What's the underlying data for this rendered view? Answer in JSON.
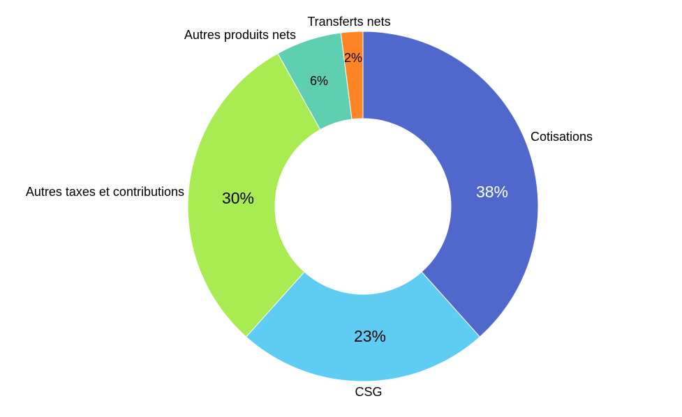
{
  "chart_data": {
    "type": "pie",
    "variant": "donut",
    "title": "",
    "unit": "%",
    "start_angle_deg": 0,
    "direction": "clockwise",
    "slices": [
      {
        "label": "Cotisations",
        "value": 38,
        "display": "38%",
        "color": "#5067CB",
        "text_color": "#FFFFFF"
      },
      {
        "label": "CSG",
        "value": 23,
        "display": "23%",
        "color": "#5ECCF3",
        "text_color": "#000000"
      },
      {
        "label": "Autres taxes et contributions",
        "value": 30,
        "display": "30%",
        "color": "#A8EB52",
        "text_color": "#000000"
      },
      {
        "label": "Autres produits nets",
        "value": 6,
        "display": "6%",
        "color": "#5ECFB1",
        "text_color": "#000000"
      },
      {
        "label": "Transferts nets",
        "value": 2,
        "display": "2%",
        "color": "#FF8426",
        "text_color": "#000000"
      }
    ]
  }
}
